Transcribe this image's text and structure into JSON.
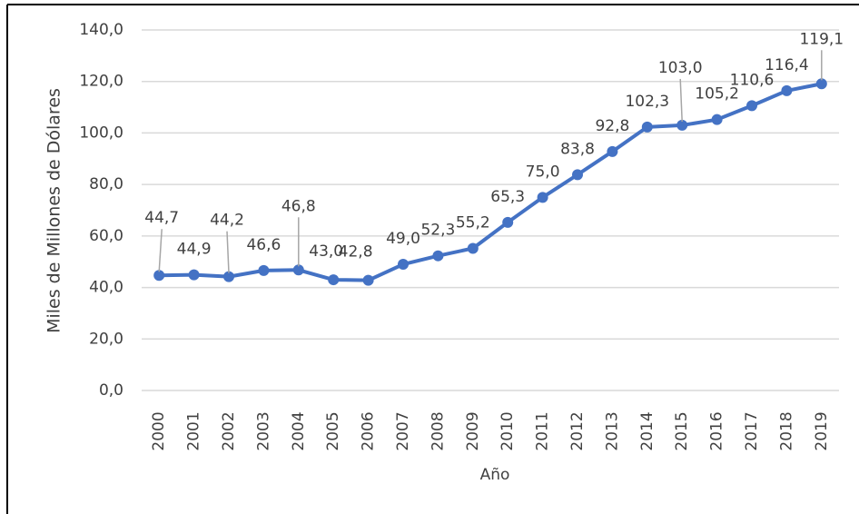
{
  "chart_data": {
    "type": "line",
    "y_label": "Miles de Millones de Dólares",
    "x_label": "Año",
    "categories": [
      "2000",
      "2001",
      "2002",
      "2003",
      "2004",
      "2005",
      "2006",
      "2007",
      "2008",
      "2009",
      "2010",
      "2011",
      "2012",
      "2013",
      "2014",
      "2015",
      "2016",
      "2017",
      "2018",
      "2019"
    ],
    "series": [
      {
        "color": "#4472c4",
        "values": [
          44.7,
          44.9,
          44.2,
          46.6,
          46.8,
          43.0,
          42.8,
          49.0,
          52.3,
          55.2,
          65.3,
          75.0,
          83.8,
          92.8,
          102.3,
          103.0,
          105.2,
          110.6,
          116.4,
          119.1
        ],
        "value_labels": [
          "44,7",
          "44,9",
          "44,2",
          "46,6",
          "46,8",
          "43,0",
          "42,8",
          "49,0",
          "52,3",
          "55,2",
          "65,3",
          "75,0",
          "83,8",
          "92,8",
          "102,3",
          "103,0",
          "105,2",
          "110,6",
          "116,4",
          "119,1"
        ]
      }
    ],
    "ylim": [
      0,
      140
    ],
    "yticks": [
      {
        "value": 0,
        "label": "0,0"
      },
      {
        "value": 20,
        "label": "20,0"
      },
      {
        "value": 40,
        "label": "40,0"
      },
      {
        "value": 60,
        "label": "60,0"
      },
      {
        "value": 80,
        "label": "80,0"
      },
      {
        "value": 100,
        "label": "100,0"
      },
      {
        "value": 120,
        "label": "120,0"
      },
      {
        "value": 140,
        "label": "140,0"
      }
    ],
    "grid": true
  }
}
